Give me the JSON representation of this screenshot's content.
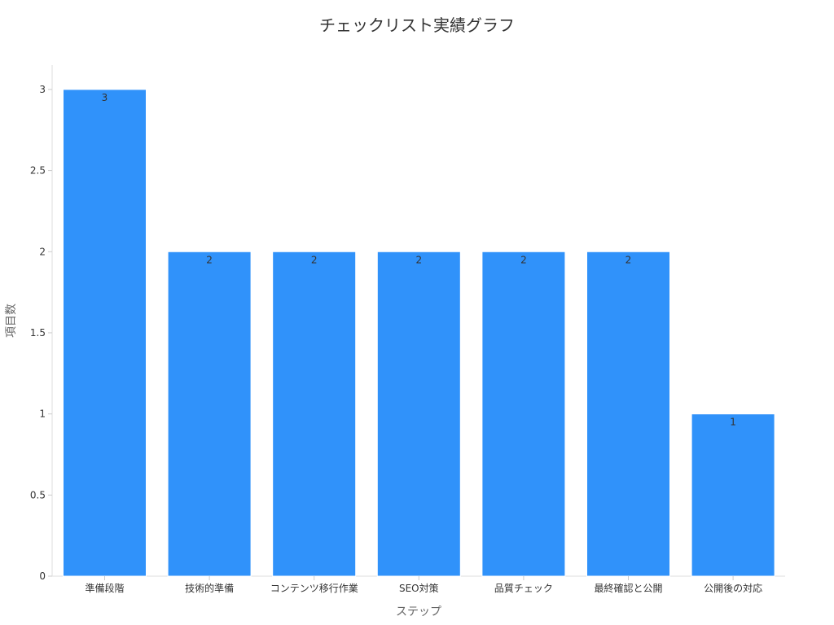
{
  "chart_data": {
    "type": "bar",
    "title": "チェックリスト実績グラフ",
    "xlabel": "ステップ",
    "ylabel": "項目数",
    "categories": [
      "準備段階",
      "技術的準備",
      "コンテンツ移行作業",
      "SEO対策",
      "品質チェック",
      "最終確認と公開",
      "公開後の対応"
    ],
    "values": [
      3,
      2,
      2,
      2,
      2,
      2,
      1
    ],
    "ylim": [
      0,
      3.15
    ],
    "yticks": [
      0,
      0.5,
      1,
      1.5,
      2,
      2.5,
      3
    ],
    "ytick_labels": [
      "0",
      "0.5",
      "1",
      "1.5",
      "2",
      "2.5",
      "3"
    ],
    "bar_color": "#3092FA",
    "grid": false,
    "legend": "none"
  }
}
